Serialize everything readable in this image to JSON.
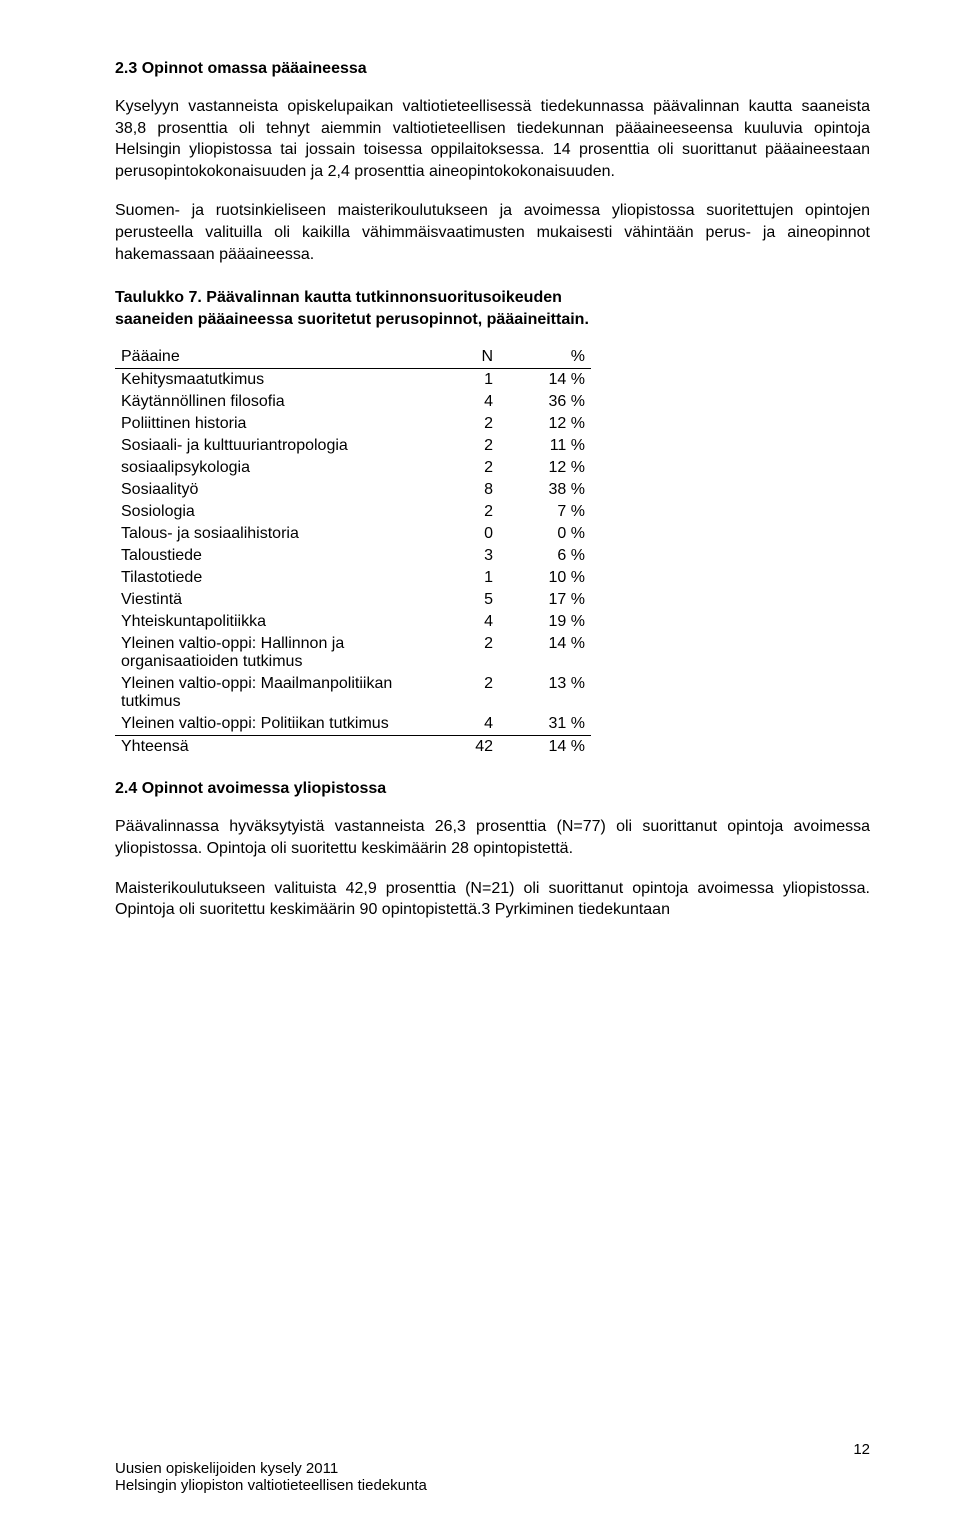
{
  "section1": {
    "heading": "2.3 Opinnot omassa pääaineessa",
    "para1": "Kyselyyn vastanneista opiskelupaikan valtiotieteellisessä tiedekunnassa päävalinnan kautta saaneista 38,8 prosenttia oli tehnyt aiemmin valtiotieteellisen tiedekunnan pääaineeseensa kuuluvia opintoja Helsingin yliopistossa tai jossain toisessa oppilaitoksessa. 14 prosenttia oli suorittanut pääaineestaan perusopintokokonaisuuden ja 2,4 prosenttia aineopintokokonaisuuden.",
    "para2": "Suomen- ja ruotsinkieliseen maisterikoulutukseen ja avoimessa yliopistossa suoritettujen opintojen perusteella valituilla oli kaikilla vähimmäisvaatimusten mukaisesti vähintään perus- ja aineopinnot hakemassaan pääaineessa."
  },
  "table7": {
    "caption": "Taulukko 7. Päävalinnan kautta tutkinnonsuoritusoikeuden saaneiden pääaineessa suoritetut perusopinnot, pääaineittain.",
    "headers": {
      "col1": "Pääaine",
      "col2": "N",
      "col3": "%"
    },
    "rows": [
      {
        "label": "Kehitysmaatutkimus",
        "n": "1",
        "p": "14 %"
      },
      {
        "label": "Käytännöllinen filosofia",
        "n": "4",
        "p": "36 %"
      },
      {
        "label": "Poliittinen historia",
        "n": "2",
        "p": "12 %"
      },
      {
        "label": "Sosiaali- ja kulttuuriantropologia",
        "n": "2",
        "p": "11 %"
      },
      {
        "label": "sosiaalipsykologia",
        "n": "2",
        "p": "12 %"
      },
      {
        "label": "Sosiaalityö",
        "n": "8",
        "p": "38 %"
      },
      {
        "label": "Sosiologia",
        "n": "2",
        "p": "7 %"
      },
      {
        "label": "Talous- ja sosiaalihistoria",
        "n": "0",
        "p": "0 %"
      },
      {
        "label": "Taloustiede",
        "n": "3",
        "p": "6 %"
      },
      {
        "label": "Tilastotiede",
        "n": "1",
        "p": "10 %"
      },
      {
        "label": "Viestintä",
        "n": "5",
        "p": "17 %"
      },
      {
        "label": "Yhteiskuntapolitiikka",
        "n": "4",
        "p": "19 %"
      },
      {
        "label": "Yleinen valtio-oppi: Hallinnon ja organisaatioiden tutkimus",
        "n": "2",
        "p": "14 %"
      },
      {
        "label": "Yleinen valtio-oppi: Maailmanpolitiikan tutkimus",
        "n": "2",
        "p": "13 %"
      },
      {
        "label": "Yleinen valtio-oppi: Politiikan tutkimus",
        "n": "4",
        "p": "31 %"
      }
    ],
    "total": {
      "label": "Yhteensä",
      "n": "42",
      "p": "14 %"
    }
  },
  "section2": {
    "heading": "2.4 Opinnot avoimessa yliopistossa",
    "para1": "Päävalinnassa hyväksytyistä vastanneista 26,3 prosenttia (N=77) oli suorittanut opintoja avoimessa yliopistossa. Opintoja oli suoritettu keskimäärin 28 opintopistettä.",
    "para2": "Maisterikoulutukseen valituista 42,9 prosenttia (N=21) oli suorittanut opintoja avoimessa yliopistossa. Opintoja oli suoritettu keskimäärin 90 opintopistettä.3 Pyrkiminen tiedekuntaan"
  },
  "footer": {
    "page_num": "12",
    "line1": "Uusien opiskelijoiden kysely 2011",
    "line2": "Helsingin yliopiston valtiotieteellisen tiedekunta"
  }
}
